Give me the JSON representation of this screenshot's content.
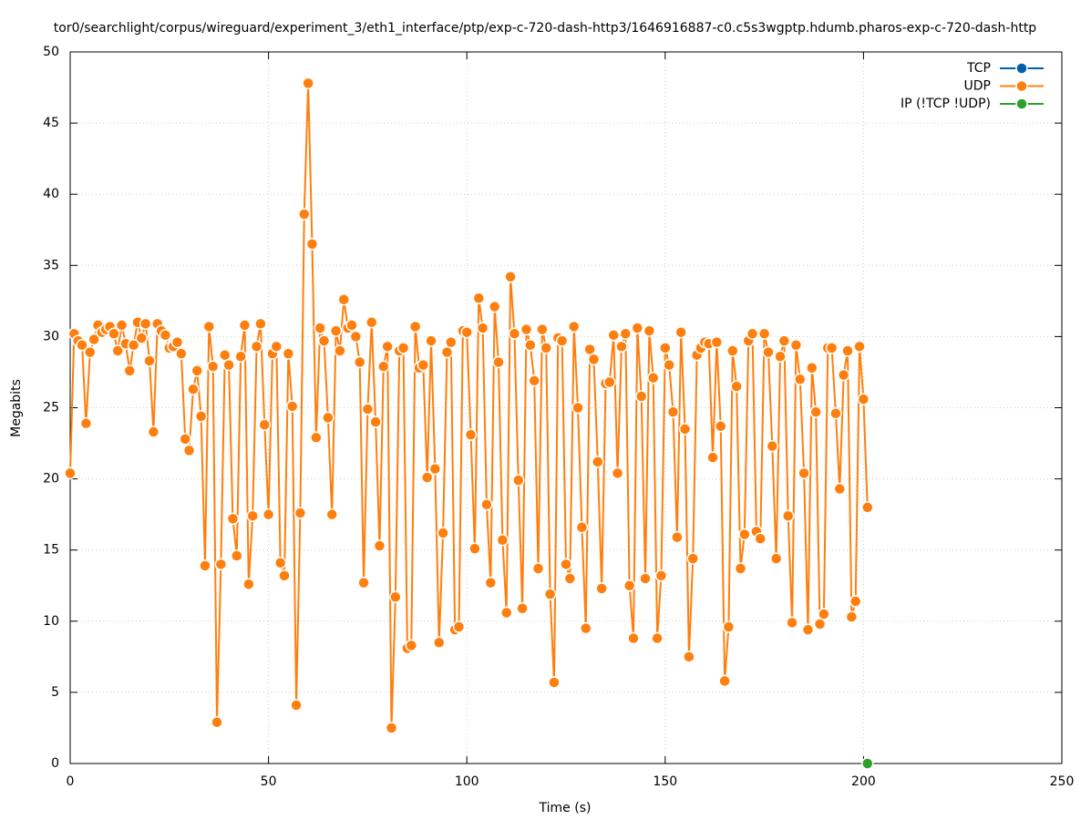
{
  "chart_data": {
    "type": "line",
    "title": "tor0/searchlight/corpus/wireguard/experiment_3/eth1_interface/ptp/exp-c-720-dash-http3/1646916887-c0.c5s3wgptp.hdumb.pharos-exp-c-720-dash-http",
    "x_label": "Time (s)",
    "y_label": "Megabits",
    "xlim": [
      0,
      250
    ],
    "xticks": [
      0,
      50,
      100,
      150,
      200,
      250
    ],
    "ylim": [
      0,
      50
    ],
    "yticks": [
      0,
      5,
      10,
      15,
      20,
      25,
      30,
      35,
      40,
      45,
      50
    ],
    "grid": true,
    "legend": "top-right",
    "series": [
      {
        "name": "TCP",
        "color": "#0060ad",
        "x": [],
        "values": []
      },
      {
        "name": "UDP",
        "color": "#ff7f0e",
        "x": [
          0,
          1,
          2,
          3,
          4,
          5,
          6,
          7,
          8,
          9,
          10,
          11,
          12,
          13,
          14,
          15,
          16,
          17,
          18,
          19,
          20,
          21,
          22,
          23,
          24,
          25,
          26,
          27,
          28,
          29,
          30,
          31,
          32,
          33,
          34,
          35,
          36,
          37,
          38,
          39,
          40,
          41,
          42,
          43,
          44,
          45,
          46,
          47,
          48,
          49,
          50,
          51,
          52,
          53,
          54,
          55,
          56,
          57,
          58,
          59,
          60,
          61,
          62,
          63,
          64,
          65,
          66,
          67,
          68,
          69,
          70,
          71,
          72,
          73,
          74,
          75,
          76,
          77,
          78,
          79,
          80,
          81,
          82,
          83,
          84,
          85,
          86,
          87,
          88,
          89,
          90,
          91,
          92,
          93,
          94,
          95,
          96,
          97,
          98,
          99,
          100,
          101,
          102,
          103,
          104,
          105,
          106,
          107,
          108,
          109,
          110,
          111,
          112,
          113,
          114,
          115,
          116,
          117,
          118,
          119,
          120,
          121,
          122,
          123,
          124,
          125,
          126,
          127,
          128,
          129,
          130,
          131,
          132,
          133,
          134,
          135,
          136,
          137,
          138,
          139,
          140,
          141,
          142,
          143,
          144,
          145,
          146,
          147,
          148,
          149,
          150,
          151,
          152,
          153,
          154,
          155,
          156,
          157,
          158,
          159,
          160,
          161,
          162,
          163,
          164,
          165,
          166,
          167,
          168,
          169,
          170,
          171,
          172,
          173,
          174,
          175,
          176,
          177,
          178,
          179,
          180,
          181,
          182,
          183,
          184,
          185,
          186,
          187,
          188,
          189,
          190,
          191,
          192,
          193,
          194,
          195,
          196,
          197,
          198,
          199,
          200,
          201
        ],
        "values": [
          20.4,
          30.2,
          29.7,
          29.4,
          23.9,
          28.9,
          29.8,
          30.8,
          30.3,
          30.5,
          30.7,
          30.2,
          29.0,
          30.8,
          29.5,
          27.6,
          29.4,
          31.0,
          29.9,
          30.9,
          28.3,
          23.3,
          30.9,
          30.4,
          30.1,
          29.2,
          29.3,
          29.6,
          28.8,
          22.8,
          22.0,
          26.3,
          27.6,
          24.4,
          13.9,
          30.7,
          27.9,
          2.9,
          14.0,
          28.7,
          28.0,
          17.2,
          14.6,
          28.6,
          30.8,
          12.6,
          17.4,
          29.3,
          30.9,
          23.8,
          17.5,
          28.8,
          29.3,
          14.1,
          13.2,
          28.8,
          25.1,
          4.1,
          17.6,
          38.6,
          47.8,
          36.5,
          22.9,
          30.6,
          29.7,
          24.3,
          17.5,
          30.4,
          29.0,
          32.6,
          30.6,
          30.8,
          30.0,
          28.2,
          12.7,
          24.9,
          31.0,
          24.0,
          15.3,
          27.9,
          29.3,
          2.5,
          11.7,
          29.0,
          29.2,
          8.1,
          8.3,
          30.7,
          27.8,
          28.0,
          20.1,
          29.7,
          20.7,
          8.5,
          16.2,
          28.9,
          29.6,
          9.4,
          9.6,
          30.4,
          30.3,
          23.1,
          15.1,
          32.7,
          30.6,
          18.2,
          12.7,
          32.1,
          28.2,
          15.7,
          10.6,
          34.2,
          30.2,
          19.9,
          10.9,
          30.5,
          29.4,
          26.9,
          13.7,
          30.5,
          29.2,
          11.9,
          5.7,
          29.9,
          29.7,
          14.0,
          13.0,
          30.7,
          25.0,
          16.6,
          9.5,
          29.1,
          28.4,
          21.2,
          12.3,
          26.7,
          26.8,
          30.1,
          20.4,
          29.3,
          30.2,
          12.5,
          8.8,
          30.6,
          25.8,
          13.0,
          30.4,
          27.1,
          8.8,
          13.2,
          29.2,
          28.0,
          24.7,
          15.9,
          30.3,
          23.5,
          7.5,
          14.4,
          28.7,
          29.2,
          29.6,
          29.5,
          21.5,
          29.6,
          23.7,
          5.8,
          9.6,
          29.0,
          26.5,
          13.7,
          16.1,
          29.7,
          30.2,
          16.3,
          15.8,
          30.2,
          28.9,
          22.3,
          14.4,
          28.6,
          29.7,
          17.4,
          9.9,
          29.4,
          27.0,
          20.4,
          9.4,
          27.8,
          24.7,
          9.8,
          10.5,
          29.2,
          29.2,
          24.6,
          19.3,
          27.3,
          29.0,
          10.3,
          11.4,
          29.3,
          25.6,
          18.0
        ]
      },
      {
        "name": "IP (!TCP  !UDP)",
        "color": "#2ca02c",
        "x": [
          201
        ],
        "values": [
          0
        ]
      }
    ]
  }
}
